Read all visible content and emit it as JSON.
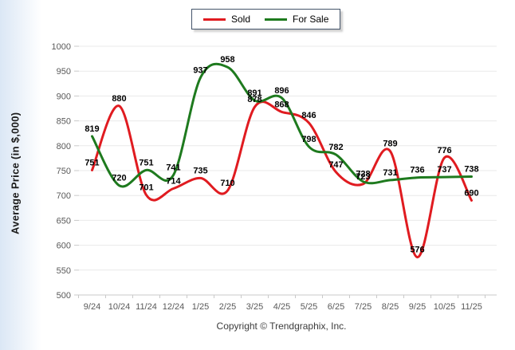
{
  "legend": {
    "items": [
      {
        "label": "Sold",
        "color": "#e01b20"
      },
      {
        "label": "For Sale",
        "color": "#1e7a1e"
      }
    ]
  },
  "y_axis_title": "Average Price (in $,000)",
  "footer": {
    "copyright": "Copyright © Trendgraphix, Inc."
  },
  "chart_data": {
    "type": "line",
    "title": "",
    "xlabel": "",
    "ylabel": "Average Price (in $,000)",
    "x": [
      "9/24",
      "10/24",
      "11/24",
      "12/24",
      "1/25",
      "2/25",
      "3/25",
      "4/25",
      "5/25",
      "6/25",
      "7/25",
      "8/25",
      "9/25",
      "10/25",
      "11/25"
    ],
    "series": [
      {
        "name": "Sold",
        "color": "#e01b20",
        "values": [
          751,
          880,
          701,
          714,
          735,
          710,
          878,
          868,
          846,
          747,
          723,
          789,
          576,
          776,
          690
        ]
      },
      {
        "name": "For Sale",
        "color": "#1e7a1e",
        "values": [
          819,
          720,
          751,
          741,
          937,
          958,
          891,
          896,
          798,
          782,
          728,
          731,
          736,
          737,
          738
        ]
      }
    ],
    "ylim": [
      500,
      1000
    ],
    "ytick_step": 50,
    "grid": true,
    "smooth": true,
    "data_labels": true,
    "legend_position": "top-center",
    "axis_text_color": "#595959",
    "grid_color": "#e9e9e9",
    "axis_line_color": "#c9c9c9"
  }
}
